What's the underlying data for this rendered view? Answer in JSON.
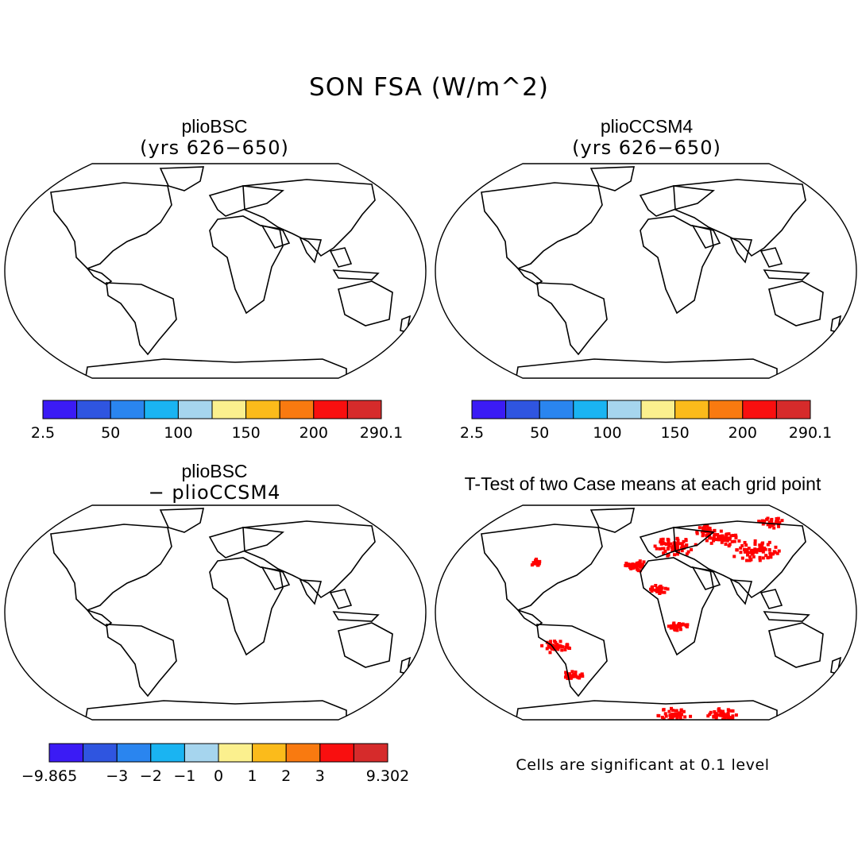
{
  "figure": {
    "title": "SON FSA (W/m^2)"
  },
  "panels": {
    "top_left": {
      "title": "plioBSC",
      "subtitle": "(yrs 626−650)"
    },
    "top_right": {
      "title": "plioCCSM4",
      "subtitle": "(yrs 626−650)"
    },
    "bottom_left": {
      "title": "plioBSC",
      "subtitle": "− plioCCSM4"
    },
    "bottom_right": {
      "title": "T-Test of two Case means at each grid point",
      "note": "Cells are significant at 0.1 level"
    }
  },
  "colorbars": {
    "absolute": {
      "colors": [
        "#3b1bf5",
        "#2f55e0",
        "#2a85ef",
        "#1ab4f2",
        "#a6d5ee",
        "#fbf08e",
        "#fbbb1b",
        "#f97a10",
        "#f90f0f",
        "#d62b2b"
      ],
      "ticks": [
        "2.5",
        "50",
        "100",
        "150",
        "200",
        "290.1"
      ]
    },
    "difference": {
      "colors": [
        "#3b1bf5",
        "#2f55e0",
        "#2a85ef",
        "#1ab4f2",
        "#a6d5ee",
        "#fbf08e",
        "#fbbb1b",
        "#f97a10",
        "#f90f0f",
        "#d62b2b"
      ],
      "ticks": [
        "−9.865",
        "−3",
        "−2",
        "−1",
        "0",
        "1",
        "2",
        "3",
        "9.302"
      ]
    }
  },
  "colors": {
    "significant": "#ff0000",
    "land_outline": "#000000",
    "ocean": "#ffffff"
  }
}
